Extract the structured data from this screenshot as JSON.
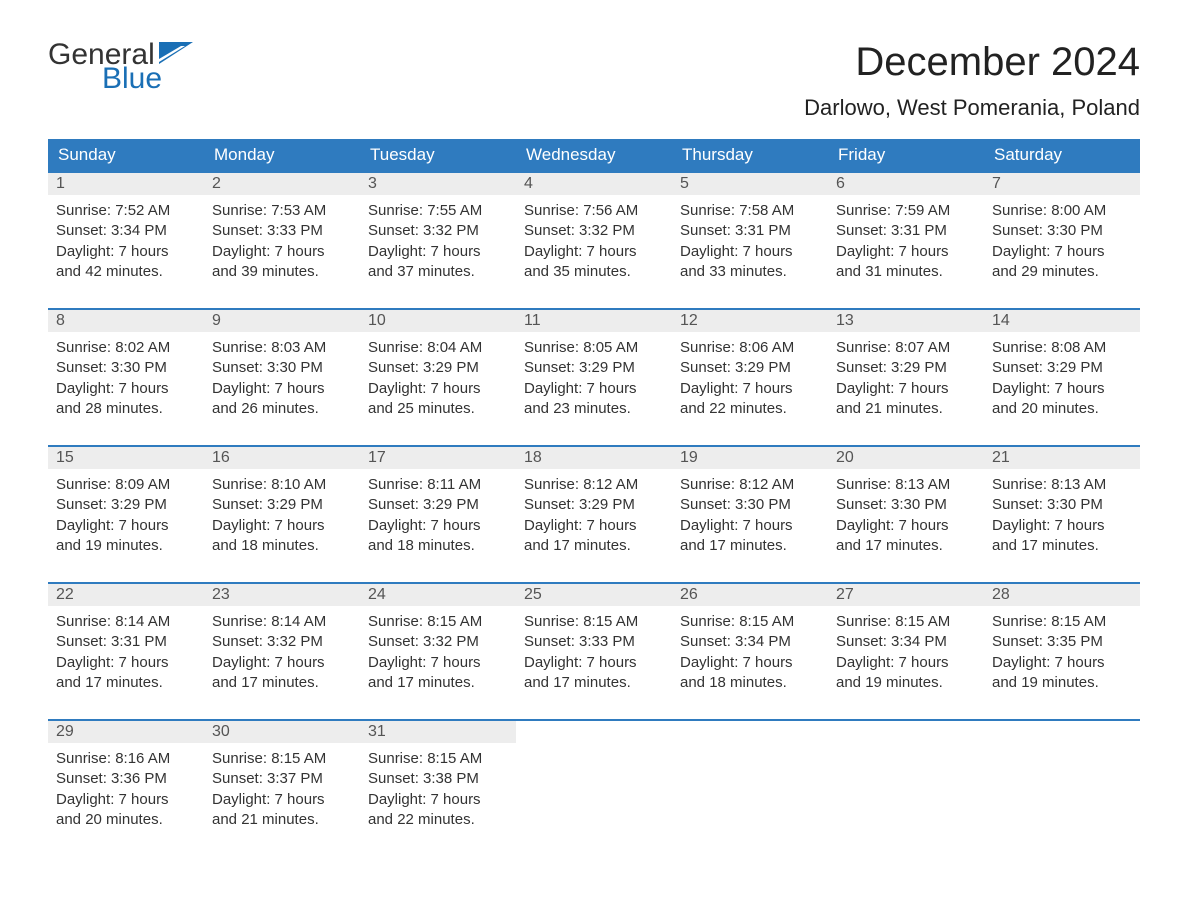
{
  "brand": {
    "word1": "General",
    "word2": "Blue",
    "word1_color": "#333333",
    "word2_color": "#1a6fb5",
    "flag_color": "#1a6fb5"
  },
  "title": "December 2024",
  "location": "Darlowo, West Pomerania, Poland",
  "colors": {
    "header_bg": "#2f7bbf",
    "header_text": "#ffffff",
    "daynum_bg": "#ededed",
    "daynum_text": "#555555",
    "row_divider": "#2f7bbf",
    "body_text": "#333333",
    "page_bg": "#ffffff"
  },
  "typography": {
    "title_fontsize": 40,
    "location_fontsize": 22,
    "header_fontsize": 17,
    "daynum_fontsize": 16,
    "detail_fontsize": 15
  },
  "columns": [
    "Sunday",
    "Monday",
    "Tuesday",
    "Wednesday",
    "Thursday",
    "Friday",
    "Saturday"
  ],
  "weeks": [
    [
      {
        "day": "1",
        "sunrise": "Sunrise: 7:52 AM",
        "sunset": "Sunset: 3:34 PM",
        "dl1": "Daylight: 7 hours",
        "dl2": "and 42 minutes."
      },
      {
        "day": "2",
        "sunrise": "Sunrise: 7:53 AM",
        "sunset": "Sunset: 3:33 PM",
        "dl1": "Daylight: 7 hours",
        "dl2": "and 39 minutes."
      },
      {
        "day": "3",
        "sunrise": "Sunrise: 7:55 AM",
        "sunset": "Sunset: 3:32 PM",
        "dl1": "Daylight: 7 hours",
        "dl2": "and 37 minutes."
      },
      {
        "day": "4",
        "sunrise": "Sunrise: 7:56 AM",
        "sunset": "Sunset: 3:32 PM",
        "dl1": "Daylight: 7 hours",
        "dl2": "and 35 minutes."
      },
      {
        "day": "5",
        "sunrise": "Sunrise: 7:58 AM",
        "sunset": "Sunset: 3:31 PM",
        "dl1": "Daylight: 7 hours",
        "dl2": "and 33 minutes."
      },
      {
        "day": "6",
        "sunrise": "Sunrise: 7:59 AM",
        "sunset": "Sunset: 3:31 PM",
        "dl1": "Daylight: 7 hours",
        "dl2": "and 31 minutes."
      },
      {
        "day": "7",
        "sunrise": "Sunrise: 8:00 AM",
        "sunset": "Sunset: 3:30 PM",
        "dl1": "Daylight: 7 hours",
        "dl2": "and 29 minutes."
      }
    ],
    [
      {
        "day": "8",
        "sunrise": "Sunrise: 8:02 AM",
        "sunset": "Sunset: 3:30 PM",
        "dl1": "Daylight: 7 hours",
        "dl2": "and 28 minutes."
      },
      {
        "day": "9",
        "sunrise": "Sunrise: 8:03 AM",
        "sunset": "Sunset: 3:30 PM",
        "dl1": "Daylight: 7 hours",
        "dl2": "and 26 minutes."
      },
      {
        "day": "10",
        "sunrise": "Sunrise: 8:04 AM",
        "sunset": "Sunset: 3:29 PM",
        "dl1": "Daylight: 7 hours",
        "dl2": "and 25 minutes."
      },
      {
        "day": "11",
        "sunrise": "Sunrise: 8:05 AM",
        "sunset": "Sunset: 3:29 PM",
        "dl1": "Daylight: 7 hours",
        "dl2": "and 23 minutes."
      },
      {
        "day": "12",
        "sunrise": "Sunrise: 8:06 AM",
        "sunset": "Sunset: 3:29 PM",
        "dl1": "Daylight: 7 hours",
        "dl2": "and 22 minutes."
      },
      {
        "day": "13",
        "sunrise": "Sunrise: 8:07 AM",
        "sunset": "Sunset: 3:29 PM",
        "dl1": "Daylight: 7 hours",
        "dl2": "and 21 minutes."
      },
      {
        "day": "14",
        "sunrise": "Sunrise: 8:08 AM",
        "sunset": "Sunset: 3:29 PM",
        "dl1": "Daylight: 7 hours",
        "dl2": "and 20 minutes."
      }
    ],
    [
      {
        "day": "15",
        "sunrise": "Sunrise: 8:09 AM",
        "sunset": "Sunset: 3:29 PM",
        "dl1": "Daylight: 7 hours",
        "dl2": "and 19 minutes."
      },
      {
        "day": "16",
        "sunrise": "Sunrise: 8:10 AM",
        "sunset": "Sunset: 3:29 PM",
        "dl1": "Daylight: 7 hours",
        "dl2": "and 18 minutes."
      },
      {
        "day": "17",
        "sunrise": "Sunrise: 8:11 AM",
        "sunset": "Sunset: 3:29 PM",
        "dl1": "Daylight: 7 hours",
        "dl2": "and 18 minutes."
      },
      {
        "day": "18",
        "sunrise": "Sunrise: 8:12 AM",
        "sunset": "Sunset: 3:29 PM",
        "dl1": "Daylight: 7 hours",
        "dl2": "and 17 minutes."
      },
      {
        "day": "19",
        "sunrise": "Sunrise: 8:12 AM",
        "sunset": "Sunset: 3:30 PM",
        "dl1": "Daylight: 7 hours",
        "dl2": "and 17 minutes."
      },
      {
        "day": "20",
        "sunrise": "Sunrise: 8:13 AM",
        "sunset": "Sunset: 3:30 PM",
        "dl1": "Daylight: 7 hours",
        "dl2": "and 17 minutes."
      },
      {
        "day": "21",
        "sunrise": "Sunrise: 8:13 AM",
        "sunset": "Sunset: 3:30 PM",
        "dl1": "Daylight: 7 hours",
        "dl2": "and 17 minutes."
      }
    ],
    [
      {
        "day": "22",
        "sunrise": "Sunrise: 8:14 AM",
        "sunset": "Sunset: 3:31 PM",
        "dl1": "Daylight: 7 hours",
        "dl2": "and 17 minutes."
      },
      {
        "day": "23",
        "sunrise": "Sunrise: 8:14 AM",
        "sunset": "Sunset: 3:32 PM",
        "dl1": "Daylight: 7 hours",
        "dl2": "and 17 minutes."
      },
      {
        "day": "24",
        "sunrise": "Sunrise: 8:15 AM",
        "sunset": "Sunset: 3:32 PM",
        "dl1": "Daylight: 7 hours",
        "dl2": "and 17 minutes."
      },
      {
        "day": "25",
        "sunrise": "Sunrise: 8:15 AM",
        "sunset": "Sunset: 3:33 PM",
        "dl1": "Daylight: 7 hours",
        "dl2": "and 17 minutes."
      },
      {
        "day": "26",
        "sunrise": "Sunrise: 8:15 AM",
        "sunset": "Sunset: 3:34 PM",
        "dl1": "Daylight: 7 hours",
        "dl2": "and 18 minutes."
      },
      {
        "day": "27",
        "sunrise": "Sunrise: 8:15 AM",
        "sunset": "Sunset: 3:34 PM",
        "dl1": "Daylight: 7 hours",
        "dl2": "and 19 minutes."
      },
      {
        "day": "28",
        "sunrise": "Sunrise: 8:15 AM",
        "sunset": "Sunset: 3:35 PM",
        "dl1": "Daylight: 7 hours",
        "dl2": "and 19 minutes."
      }
    ],
    [
      {
        "day": "29",
        "sunrise": "Sunrise: 8:16 AM",
        "sunset": "Sunset: 3:36 PM",
        "dl1": "Daylight: 7 hours",
        "dl2": "and 20 minutes."
      },
      {
        "day": "30",
        "sunrise": "Sunrise: 8:15 AM",
        "sunset": "Sunset: 3:37 PM",
        "dl1": "Daylight: 7 hours",
        "dl2": "and 21 minutes."
      },
      {
        "day": "31",
        "sunrise": "Sunrise: 8:15 AM",
        "sunset": "Sunset: 3:38 PM",
        "dl1": "Daylight: 7 hours",
        "dl2": "and 22 minutes."
      },
      null,
      null,
      null,
      null
    ]
  ]
}
